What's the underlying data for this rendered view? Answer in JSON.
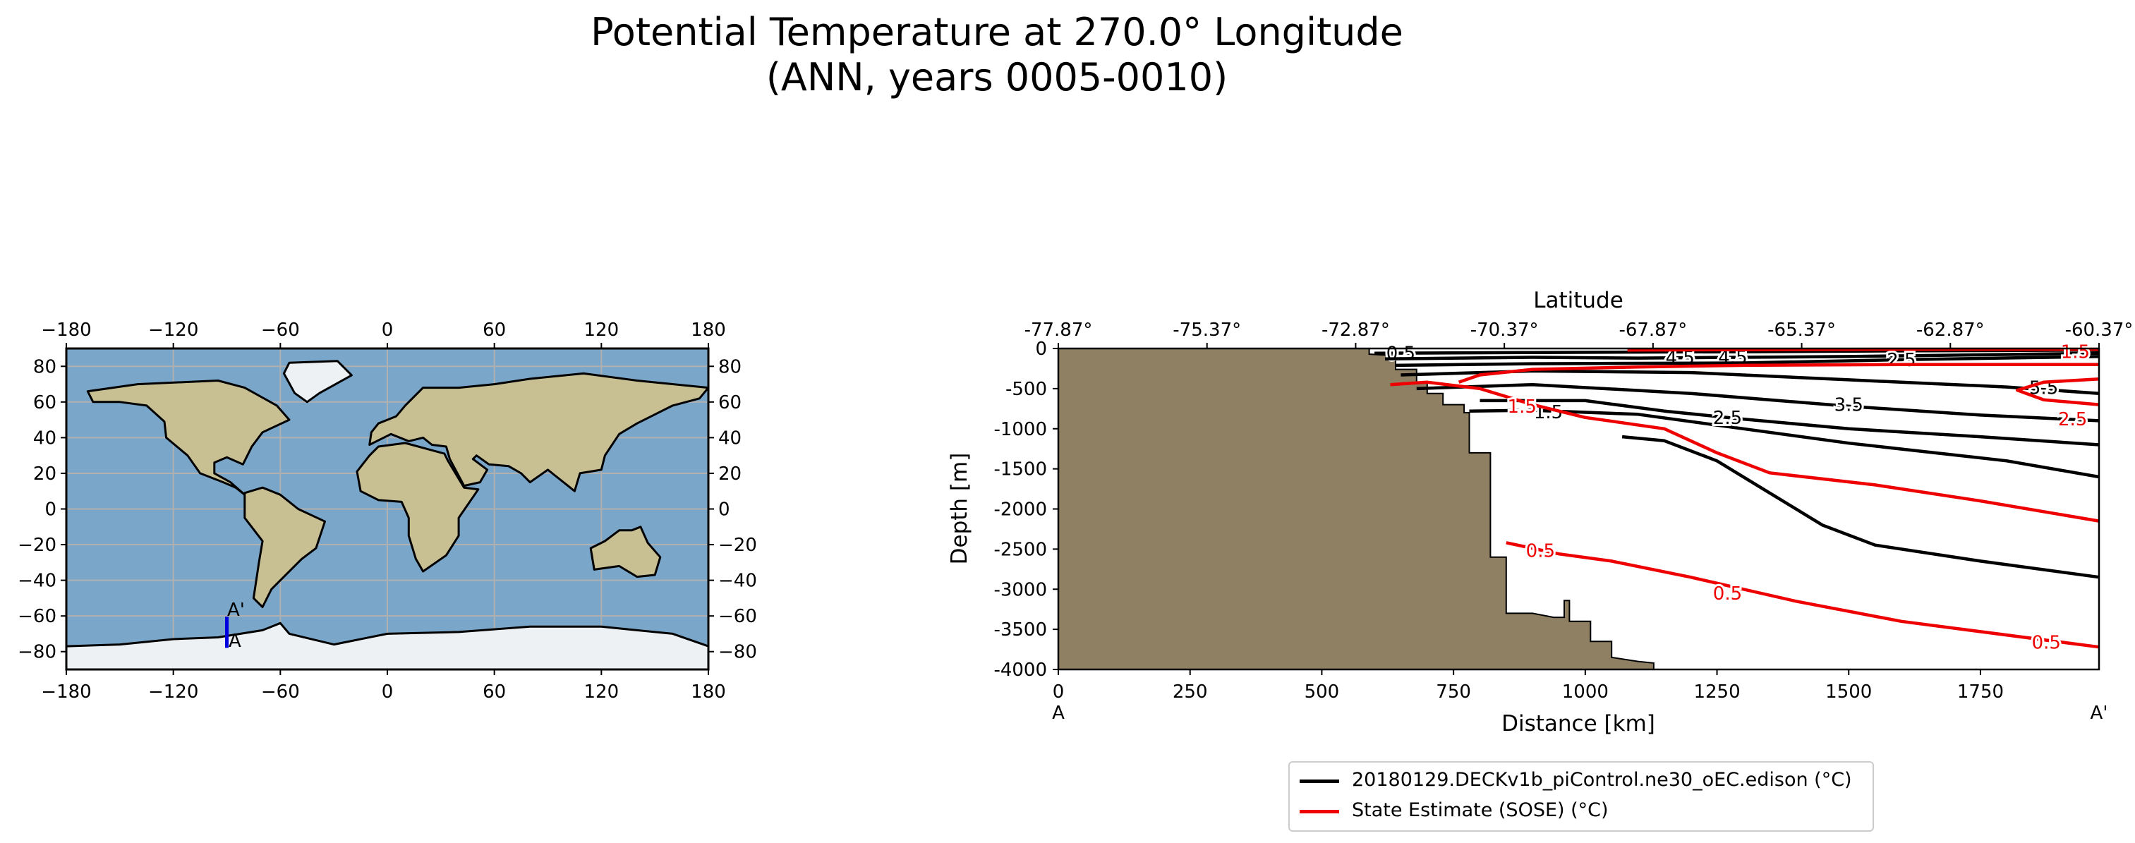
{
  "title_line1": "Potential Temperature at 270.0° Longitude",
  "title_line2": "(ANN, years 0005-0010)",
  "map": {
    "x_ticks": [
      "−180",
      "−120",
      "−60",
      "0",
      "60",
      "120",
      "180"
    ],
    "y_ticks": [
      "80",
      "60",
      "40",
      "20",
      "0",
      "−20",
      "−40",
      "−60",
      "−80"
    ],
    "section_start_label": "A",
    "section_end_label": "A'",
    "section_lon": -90,
    "section_lat_range": [
      -77.87,
      -60.37
    ],
    "ocean_color": "#7aa6c9",
    "land_color": "#c8bf92",
    "ice_color": "#eef1f4",
    "section_color": "#0000dd"
  },
  "chart_data": {
    "type": "contour",
    "title": "",
    "xlabel": "Distance [km]",
    "ylabel": "Depth [m]",
    "top_axis_label": "Latitude",
    "xlim": [
      0,
      1975
    ],
    "ylim": [
      -4000,
      0
    ],
    "x_ticks": [
      0,
      250,
      500,
      750,
      1000,
      1250,
      1500,
      1750
    ],
    "y_ticks": [
      0,
      -500,
      -1000,
      -1500,
      -2000,
      -2500,
      -3000,
      -3500,
      -4000
    ],
    "x_tick_labels": [
      "0",
      "250",
      "500",
      "750",
      "1000",
      "1250",
      "1500",
      "1750"
    ],
    "y_tick_labels": [
      "0",
      "-500",
      "-1000",
      "-1500",
      "-2000",
      "-2500",
      "-3000",
      "-3500",
      "-4000"
    ],
    "top_tick_labels": [
      "-77.87°",
      "-75.37°",
      "-72.87°",
      "-70.37°",
      "-67.87°",
      "-65.37°",
      "-62.87°",
      "-60.37°"
    ],
    "start_label": "A",
    "end_label": "A'",
    "bathymetry_color": "#8f8064",
    "bathymetry": [
      [
        0,
        0
      ],
      [
        590,
        0
      ],
      [
        590,
        -70
      ],
      [
        640,
        -90
      ],
      [
        640,
        -260
      ],
      [
        680,
        -260
      ],
      [
        680,
        -420
      ],
      [
        700,
        -420
      ],
      [
        700,
        -560
      ],
      [
        730,
        -560
      ],
      [
        730,
        -700
      ],
      [
        770,
        -700
      ],
      [
        770,
        -800
      ],
      [
        780,
        -800
      ],
      [
        780,
        -1300
      ],
      [
        820,
        -1300
      ],
      [
        820,
        -2600
      ],
      [
        850,
        -2600
      ],
      [
        850,
        -3300
      ],
      [
        900,
        -3300
      ],
      [
        940,
        -3350
      ],
      [
        960,
        -3350
      ],
      [
        960,
        -3140
      ],
      [
        970,
        -3140
      ],
      [
        970,
        -3400
      ],
      [
        1010,
        -3400
      ],
      [
        1010,
        -3650
      ],
      [
        1050,
        -3650
      ],
      [
        1050,
        -3850
      ],
      [
        1100,
        -3900
      ],
      [
        1130,
        -3920
      ],
      [
        1130,
        -4000
      ],
      [
        0,
        -4000
      ]
    ],
    "series": [
      {
        "name": "20180129.DECKv1b_piControl.ne30_oEC.edison (°C)",
        "color": "#000000",
        "contours": [
          {
            "level": "0.5",
            "points": [
              [
                600,
                -60
              ],
              [
                900,
                -50
              ],
              [
                1300,
                -40
              ],
              [
                1600,
                -30
              ],
              [
                1975,
                -20
              ]
            ],
            "labels": [
              [
                650,
                -55
              ]
            ]
          },
          {
            "level": "4.5",
            "points": [
              [
                620,
                -130
              ],
              [
                900,
                -110
              ],
              [
                1100,
                -120
              ],
              [
                1500,
                -100
              ],
              [
                1975,
                -60
              ]
            ],
            "labels": [
              [
                1180,
                -115
              ],
              [
                1280,
                -110
              ]
            ]
          },
          {
            "level": "2.5",
            "points": [
              [
                640,
                -210
              ],
              [
                900,
                -190
              ],
              [
                1300,
                -180
              ],
              [
                1600,
                -140
              ],
              [
                1975,
                -100
              ]
            ],
            "labels": [
              [
                1600,
                -140
              ]
            ]
          },
          {
            "level": "5.5",
            "points": [
              [
                650,
                -330
              ],
              [
                900,
                -280
              ],
              [
                1200,
                -300
              ],
              [
                1500,
                -390
              ],
              [
                1800,
                -480
              ],
              [
                1975,
                -560
              ]
            ],
            "labels": [
              [
                1870,
                -490
              ]
            ]
          },
          {
            "level": "3.5",
            "points": [
              [
                680,
                -500
              ],
              [
                900,
                -450
              ],
              [
                1200,
                -560
              ],
              [
                1500,
                -720
              ],
              [
                1750,
                -830
              ],
              [
                1975,
                -900
              ]
            ],
            "labels": [
              [
                1500,
                -700
              ]
            ]
          },
          {
            "level": "1.5",
            "points": [
              [
                780,
                -780
              ],
              [
                900,
                -770
              ],
              [
                1100,
                -820
              ],
              [
                1300,
                -1000
              ],
              [
                1500,
                -1180
              ],
              [
                1800,
                -1400
              ],
              [
                1975,
                -1600
              ]
            ],
            "labels": [
              [
                930,
                -790
              ]
            ]
          },
          {
            "level": "2.5",
            "points": [
              [
                800,
                -650
              ],
              [
                1000,
                -650
              ],
              [
                1150,
                -780
              ],
              [
                1300,
                -880
              ],
              [
                1500,
                -1000
              ],
              [
                1750,
                -1100
              ],
              [
                1975,
                -1200
              ]
            ],
            "labels": [
              [
                1270,
                -860
              ]
            ]
          },
          {
            "level": "0.5",
            "points": [
              [
                1070,
                -1100
              ],
              [
                1150,
                -1150
              ],
              [
                1250,
                -1400
              ],
              [
                1350,
                -1800
              ],
              [
                1450,
                -2200
              ],
              [
                1550,
                -2450
              ],
              [
                1750,
                -2650
              ],
              [
                1975,
                -2850
              ]
            ],
            "labels": []
          }
        ]
      },
      {
        "name": "State Estimate (SOSE) (°C)",
        "color": "#ee0000",
        "contours": [
          {
            "level": "1.5",
            "points": [
              [
                630,
                -450
              ],
              [
                700,
                -420
              ],
              [
                800,
                -500
              ],
              [
                900,
                -700
              ],
              [
                1000,
                -860
              ],
              [
                1150,
                -1000
              ],
              [
                1250,
                -1300
              ],
              [
                1350,
                -1550
              ],
              [
                1550,
                -1700
              ],
              [
                1750,
                -1900
              ],
              [
                1975,
                -2150
              ]
            ],
            "labels": [
              [
                880,
                -720
              ]
            ]
          },
          {
            "level": "2.5",
            "points": [
              [
                760,
                -420
              ],
              [
                800,
                -330
              ],
              [
                900,
                -260
              ],
              [
                1100,
                -230
              ],
              [
                1300,
                -210
              ],
              [
                1600,
                -200
              ],
              [
                1975,
                -200
              ]
            ],
            "labels": []
          },
          {
            "level": "2.5",
            "points": [
              [
                1975,
                -700
              ],
              [
                1870,
                -640
              ],
              [
                1820,
                -520
              ],
              [
                1870,
                -420
              ],
              [
                1975,
                -380
              ]
            ],
            "labels": [
              [
                1925,
                -880
              ]
            ]
          },
          {
            "level": "1.5",
            "points": [
              [
                1080,
                -20
              ],
              [
                1300,
                -15
              ],
              [
                1600,
                -10
              ],
              [
                1975,
                -10
              ]
            ],
            "labels": [
              [
                1930,
                -40
              ]
            ]
          },
          {
            "level": "0.5",
            "points": [
              [
                850,
                -2420
              ],
              [
                950,
                -2560
              ],
              [
                1050,
                -2650
              ],
              [
                1200,
                -2850
              ],
              [
                1400,
                -3150
              ],
              [
                1600,
                -3400
              ],
              [
                1975,
                -3720
              ]
            ],
            "labels": [
              [
                915,
                -2520
              ],
              [
                1270,
                -3050
              ],
              [
                1875,
                -3660
              ]
            ]
          }
        ]
      }
    ],
    "legend_position": "bottom"
  }
}
